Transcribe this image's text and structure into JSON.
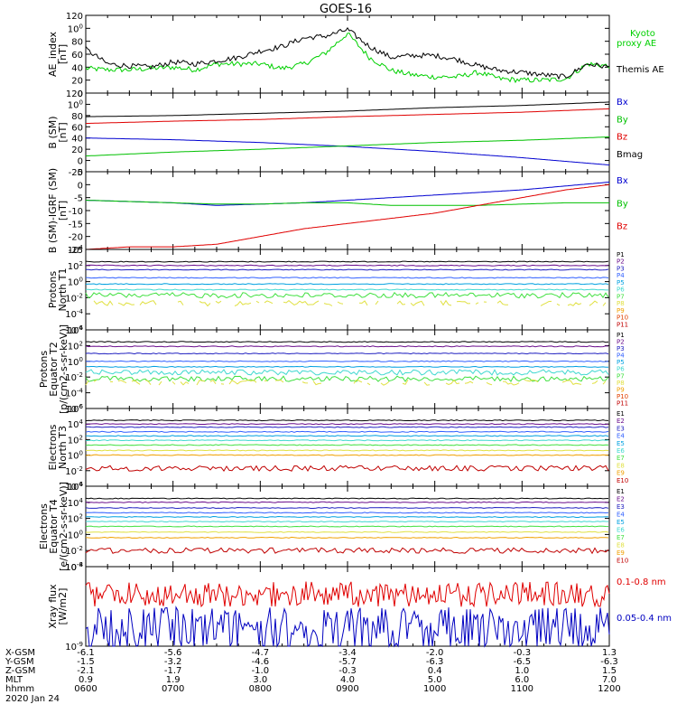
{
  "title": "GOES-16",
  "chart_data": [
    {
      "type": "line",
      "ylabel": [
        "AE_index",
        "[nT]"
      ],
      "ylim": [
        0,
        120
      ],
      "yticks": [
        "0",
        "20",
        "40",
        "60",
        "80",
        "100",
        "120"
      ],
      "series": [
        {
          "name": "Kyoto proxy AE",
          "label_lines": [
            "Kyoto",
            "proxy AE"
          ],
          "color": "#00d000",
          "x": [
            600,
            615,
            630,
            645,
            700,
            715,
            730,
            745,
            800,
            815,
            830,
            845,
            900,
            915,
            930,
            945,
            1000,
            1015,
            1030,
            1045,
            1100,
            1115,
            1130,
            1145,
            1200
          ],
          "values": [
            38,
            36,
            36,
            38,
            40,
            36,
            45,
            45,
            45,
            38,
            45,
            62,
            92,
            55,
            35,
            28,
            25,
            25,
            32,
            22,
            20,
            20,
            22,
            45,
            42
          ]
        },
        {
          "name": "Themis AE",
          "label_lines": [
            "Themis AE"
          ],
          "color": "#000000",
          "x": [
            600,
            615,
            630,
            645,
            700,
            715,
            730,
            745,
            800,
            815,
            830,
            845,
            900,
            915,
            930,
            945,
            1000,
            1015,
            1030,
            1045,
            1100,
            1115,
            1130,
            1145,
            1200
          ],
          "values": [
            68,
            45,
            42,
            40,
            48,
            45,
            50,
            55,
            65,
            72,
            85,
            88,
            98,
            72,
            55,
            58,
            58,
            52,
            42,
            35,
            32,
            28,
            25,
            45,
            40
          ]
        }
      ]
    },
    {
      "type": "line",
      "ylabel": [
        "B (SM)",
        "[nT]"
      ],
      "ylim": [
        -20,
        120
      ],
      "yticks": [
        "-20",
        "0",
        "20",
        "40",
        "60",
        "80",
        "100",
        "120"
      ],
      "series": [
        {
          "name": "Bx",
          "label_lines": [
            "Bx"
          ],
          "color": "#0000d0",
          "x": [
            600,
            700,
            800,
            900,
            1000,
            1100,
            1200
          ],
          "values": [
            40,
            37,
            32,
            25,
            16,
            5,
            -8
          ]
        },
        {
          "name": "By",
          "label_lines": [
            "By"
          ],
          "color": "#00c000",
          "x": [
            600,
            700,
            800,
            900,
            1000,
            1100,
            1200
          ],
          "values": [
            8,
            15,
            20,
            26,
            32,
            36,
            42
          ]
        },
        {
          "name": "Bz",
          "label_lines": [
            "Bz"
          ],
          "color": "#e00000",
          "x": [
            600,
            700,
            800,
            900,
            1000,
            1100,
            1200
          ],
          "values": [
            66,
            70,
            73,
            78,
            82,
            86,
            92
          ]
        },
        {
          "name": "Bmag",
          "label_lines": [
            "Bmag"
          ],
          "color": "#000000",
          "x": [
            600,
            700,
            800,
            900,
            1000,
            1100,
            1200
          ],
          "values": [
            78,
            80,
            84,
            88,
            94,
            98,
            104
          ]
        }
      ]
    },
    {
      "type": "line",
      "ylabel": [
        "B (SM)-IGRF (SM)",
        "[nT]"
      ],
      "ylim": [
        -25,
        5
      ],
      "yticks": [
        "-25",
        "-20",
        "-15",
        "-10",
        "-5",
        "0",
        "5"
      ],
      "series": [
        {
          "name": "Bx",
          "label_lines": [
            "Bx"
          ],
          "color": "#0000d0",
          "x": [
            600,
            630,
            700,
            730,
            800,
            830,
            900,
            930,
            1000,
            1030,
            1100,
            1130,
            1200
          ],
          "values": [
            -6,
            -6.5,
            -7,
            -8,
            -7.5,
            -7,
            -6,
            -5,
            -4,
            -3,
            -2,
            -0.5,
            1
          ]
        },
        {
          "name": "By",
          "label_lines": [
            "By"
          ],
          "color": "#00c000",
          "x": [
            600,
            630,
            700,
            730,
            800,
            830,
            900,
            930,
            1000,
            1030,
            1100,
            1130,
            1200
          ],
          "values": [
            -6,
            -6.5,
            -7,
            -7.5,
            -7.5,
            -7,
            -7,
            -8,
            -8,
            -8,
            -7.5,
            -7,
            -7
          ]
        },
        {
          "name": "Bz",
          "label_lines": [
            "Bz"
          ],
          "color": "#e00000",
          "x": [
            600,
            630,
            700,
            730,
            800,
            830,
            900,
            930,
            1000,
            1030,
            1100,
            1130,
            1200
          ],
          "values": [
            -25,
            -24,
            -24,
            -23,
            -20,
            -17,
            -15,
            -13,
            -11,
            -8,
            -5,
            -2,
            0
          ]
        }
      ]
    },
    {
      "type": "line",
      "yscale": "log",
      "ylabel": [
        "Protons",
        "North T1"
      ],
      "ylim": [
        1e-06,
        10000.0
      ],
      "yticks": [
        "10-6",
        "10-4",
        "10-2",
        "100",
        "102",
        "104"
      ],
      "series": [
        {
          "name": "P1",
          "color": "#000000",
          "level": 300.0
        },
        {
          "name": "P2",
          "color": "#6a0d8c",
          "level": 100.0
        },
        {
          "name": "P3",
          "color": "#2020c0",
          "level": 30.0
        },
        {
          "name": "P4",
          "color": "#3060ff",
          "level": 3
        },
        {
          "name": "P5",
          "color": "#00a0e0",
          "level": 0.5
        },
        {
          "name": "P6",
          "color": "#40d8d0",
          "level": 0.1
        },
        {
          "name": "P7",
          "color": "#40e040",
          "level": 0.02
        },
        {
          "name": "P8",
          "color": "#e0e040",
          "level": 0.002
        },
        {
          "name": "P9",
          "color": "#f0a000",
          "level": 0
        },
        {
          "name": "P10",
          "color": "#e04000",
          "level": 0
        },
        {
          "name": "P11",
          "color": "#c00000",
          "level": 0
        }
      ]
    },
    {
      "type": "line",
      "yscale": "log",
      "ylabel": [
        "Protons",
        "Equator T2",
        "[p/(cm2-s-sr-keV)]"
      ],
      "ylim": [
        1e-06,
        10000.0
      ],
      "yticks": [
        "10-6",
        "10-4",
        "10-2",
        "100",
        "102",
        "104"
      ],
      "series": [
        {
          "name": "P1",
          "color": "#000000",
          "level": 300
        },
        {
          "name": "P2",
          "color": "#6a0d8c",
          "level": 80
        },
        {
          "name": "P3",
          "color": "#2020c0",
          "level": 10
        },
        {
          "name": "P4",
          "color": "#3060ff",
          "level": 1
        },
        {
          "name": "P5",
          "color": "#00a0e0",
          "level": 0.2
        },
        {
          "name": "P6",
          "color": "#40d8d0",
          "level": 0.04
        },
        {
          "name": "P7",
          "color": "#40e040",
          "level": 0.006
        },
        {
          "name": "P8",
          "color": "#e0e040",
          "level": 0.002
        },
        {
          "name": "P9",
          "color": "#f0a000",
          "level": 0
        },
        {
          "name": "P10",
          "color": "#e04000",
          "level": 0
        },
        {
          "name": "P11",
          "color": "#c00000",
          "level": 0
        }
      ]
    },
    {
      "type": "line",
      "yscale": "log",
      "ylabel": [
        "Electrons",
        "North T3"
      ],
      "ylim": [
        0.0001,
        1000000.0
      ],
      "yticks": [
        "10-4",
        "10-2",
        "100",
        "102",
        "104",
        "106"
      ],
      "series": [
        {
          "name": "E1",
          "color": "#000000",
          "level": 30000.0
        },
        {
          "name": "E2",
          "color": "#6a0d8c",
          "level": 10000.0
        },
        {
          "name": "E3",
          "color": "#2020c0",
          "level": 4000.0
        },
        {
          "name": "E4",
          "color": "#3060ff",
          "level": 1000.0
        },
        {
          "name": "E5",
          "color": "#00a0e0",
          "level": 300
        },
        {
          "name": "E6",
          "color": "#40d8d0",
          "level": 80
        },
        {
          "name": "E7",
          "color": "#40e040",
          "level": 20
        },
        {
          "name": "E8",
          "color": "#e0e040",
          "level": 4
        },
        {
          "name": "E9",
          "color": "#f0a000",
          "level": 1
        },
        {
          "name": "E10",
          "color": "#c00000",
          "level": 0.02
        }
      ]
    },
    {
      "type": "line",
      "yscale": "log",
      "ylabel": [
        "Electrons",
        "Equator T4",
        "[e/(cm2-s-sr-keV)]"
      ],
      "ylim": [
        0.0001,
        1000000.0
      ],
      "yticks": [
        "10-4",
        "10-2",
        "100",
        "102",
        "104",
        "106"
      ],
      "series": [
        {
          "name": "E1",
          "color": "#000000",
          "level": 30000.0
        },
        {
          "name": "E2",
          "color": "#6a0d8c",
          "level": 10000.0
        },
        {
          "name": "E3",
          "color": "#2020c0",
          "level": 2000.0
        },
        {
          "name": "E4",
          "color": "#3060ff",
          "level": 500
        },
        {
          "name": "E5",
          "color": "#00a0e0",
          "level": 150
        },
        {
          "name": "E6",
          "color": "#40d8d0",
          "level": 40
        },
        {
          "name": "E7",
          "color": "#40e040",
          "level": 10
        },
        {
          "name": "E8",
          "color": "#e0e040",
          "level": 2
        },
        {
          "name": "E9",
          "color": "#f0a000",
          "level": 0.4
        },
        {
          "name": "E10",
          "color": "#c00000",
          "level": 0.01
        }
      ]
    },
    {
      "type": "line",
      "yscale": "log",
      "ylabel": [
        "Xray flux",
        "[W/m2]"
      ],
      "ylim": [
        1e-09,
        1e-08
      ],
      "yticks": [
        "10-9",
        "10-8"
      ],
      "series": [
        {
          "name": "0.1-0.8 nm",
          "label_lines": [
            "0.1-0.8 nm"
          ],
          "color": "#e00000",
          "level": 4.5e-09
        },
        {
          "name": "0.05-0.4 nm",
          "label_lines": [
            "0.05-0.4 nm"
          ],
          "color": "#0000c0",
          "level": 1.6e-09
        }
      ]
    }
  ],
  "x_axis": {
    "range": [
      600,
      1200
    ],
    "rows": [
      {
        "label": "X-GSM",
        "values": [
          "-6.1",
          "-5.6",
          "-4.7",
          "-3.4",
          "-2.0",
          "-0.3",
          "1.3"
        ]
      },
      {
        "label": "Y-GSM",
        "values": [
          "-1.5",
          "-3.2",
          "-4.6",
          "-5.7",
          "-6.3",
          "-6.5",
          "-6.3"
        ]
      },
      {
        "label": "Z-GSM",
        "values": [
          "-2.1",
          "-1.7",
          "-1.0",
          "-0.3",
          "0.4",
          "1.0",
          "1.5"
        ]
      },
      {
        "label": "MLT",
        "values": [
          "0.9",
          "1.9",
          "3.0",
          "4.0",
          "5.0",
          "6.0",
          "7.0"
        ]
      },
      {
        "label": "hhmm",
        "values": [
          "0600",
          "0700",
          "0800",
          "0900",
          "1000",
          "1100",
          "1200"
        ]
      }
    ],
    "date": "2020 Jan 24"
  }
}
